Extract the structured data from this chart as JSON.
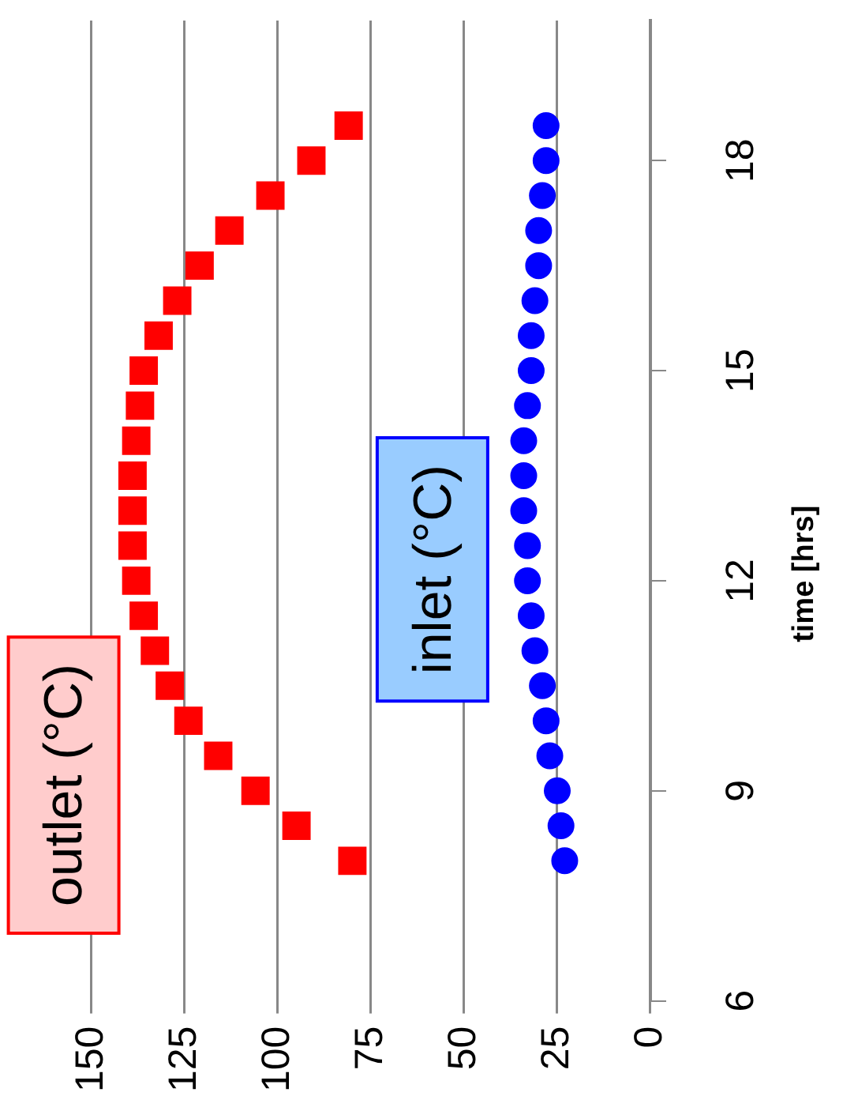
{
  "chart_data": {
    "type": "scatter",
    "ylabel": "time [hrs]",
    "xlim": [
      150,
      0
    ],
    "xticks": [
      0,
      25,
      50,
      75,
      100,
      125,
      150
    ],
    "ylim": [
      6,
      20
    ],
    "yticks": [
      6,
      9,
      12,
      15,
      18
    ],
    "grid": "x",
    "legend": false,
    "series": [
      {
        "name": "outlet (°C)",
        "color": "#ff0000",
        "marker": "square",
        "x": [
          80,
          95,
          106,
          116,
          124,
          129,
          133,
          136,
          138,
          139,
          139,
          139,
          138,
          137,
          136,
          132,
          127,
          121,
          113,
          102,
          91,
          81
        ],
        "values": [
          8,
          8.5,
          9,
          9.5,
          10,
          10.5,
          11,
          11.5,
          12,
          12.5,
          13,
          13.5,
          14,
          14.5,
          15,
          15.5,
          16,
          16.5,
          17,
          17.5,
          18,
          18.5
        ]
      },
      {
        "name": "inlet (°C)",
        "color": "#0000ff",
        "marker": "circle",
        "x": [
          23,
          24,
          25,
          27,
          28,
          29,
          31,
          32,
          33,
          33,
          34,
          34,
          34,
          33,
          32,
          32,
          31,
          30,
          30,
          29,
          28,
          28
        ],
        "values": [
          8,
          8.5,
          9,
          9.5,
          10,
          10.5,
          11,
          11.5,
          12,
          12.5,
          13,
          13.5,
          14,
          14.5,
          15,
          15.5,
          16,
          16.5,
          17,
          17.5,
          18,
          18.5
        ]
      }
    ]
  }
}
